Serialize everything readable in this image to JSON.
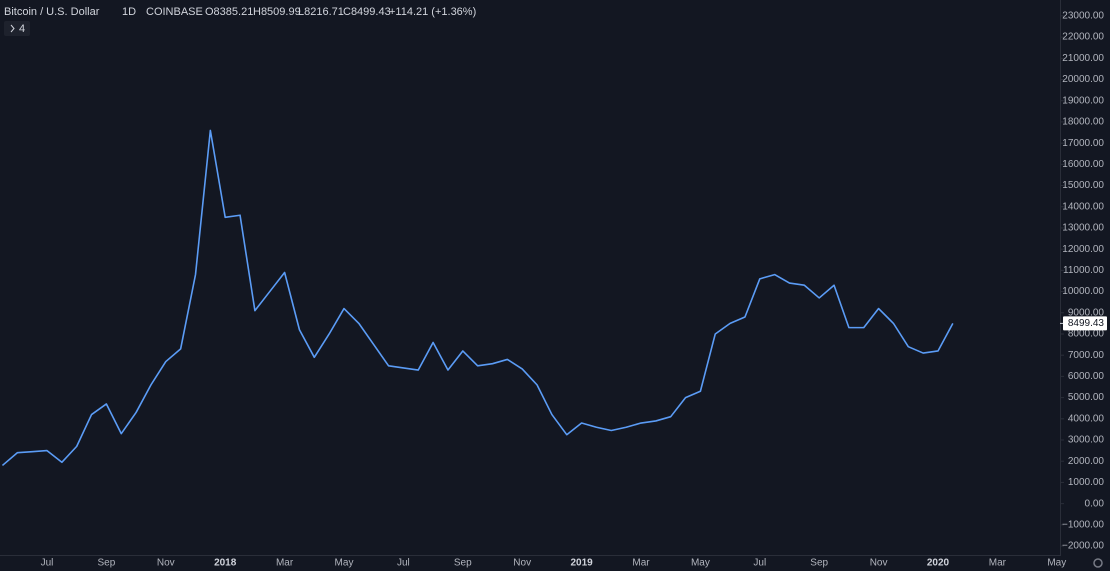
{
  "header": {
    "symbol": "Bitcoin / U.S. Dollar",
    "interval": "1D",
    "exchange": "COINBASE",
    "open": "O8385.21",
    "high": "H8509.99",
    "low": "L8216.71",
    "close": "C8499.43",
    "change": "+114.21 (+1.36%)",
    "indicators": "4"
  },
  "chart_data": {
    "type": "line",
    "categories": [
      null,
      null,
      null,
      "Jul",
      null,
      null,
      null,
      "Sep",
      null,
      null,
      null,
      "Nov",
      null,
      null,
      null,
      "2018",
      null,
      null,
      null,
      "Mar",
      null,
      null,
      null,
      "May",
      null,
      null,
      null,
      "Jul",
      null,
      null,
      null,
      "Sep",
      null,
      null,
      null,
      "Nov",
      null,
      null,
      null,
      "2019",
      null,
      null,
      null,
      "Mar",
      null,
      null,
      null,
      "May",
      null,
      null,
      null,
      "Jul",
      null,
      null,
      null,
      "Sep",
      null,
      null,
      null,
      "Nov",
      null,
      null,
      null,
      "2020",
      null,
      null,
      null,
      "Mar",
      null,
      null,
      null,
      "May"
    ],
    "series": [
      {
        "color": "#5b9cf6",
        "values": [
          1800,
          2400,
          2450,
          2500,
          1950,
          2700,
          4200,
          4700,
          3300,
          4300,
          5600,
          6700,
          7300,
          10800,
          17600,
          13500,
          13600,
          9100,
          10000,
          10900,
          8200,
          6900,
          8000,
          9200,
          8500,
          7500,
          6500,
          6400,
          6300,
          7600,
          6300,
          7200,
          6500,
          6600,
          6800,
          6350,
          5600,
          4200,
          3250,
          3800,
          3600,
          3450,
          3600,
          3800,
          3900,
          4100,
          5000,
          5300,
          8000,
          8500,
          8800,
          10600,
          10800,
          10400,
          10300,
          9700,
          10300,
          8300,
          8300,
          9200,
          8500,
          7400,
          7100,
          7200,
          8500,
          null,
          null,
          null,
          null,
          null,
          null,
          null
        ]
      }
    ],
    "last_price": 8499.43,
    "ylim": [
      -2470,
      23750
    ],
    "yticks": [
      {
        "value": -2000,
        "label": "−2000.00"
      },
      {
        "value": -1000,
        "label": "−1000.00"
      },
      {
        "value": 0,
        "label": "0.00"
      },
      {
        "value": 1000,
        "label": "1000.00"
      },
      {
        "value": 2000,
        "label": "2000.00"
      },
      {
        "value": 3000,
        "label": "3000.00"
      },
      {
        "value": 4000,
        "label": "4000.00"
      },
      {
        "value": 5000,
        "label": "5000.00"
      },
      {
        "value": 6000,
        "label": "6000.00"
      },
      {
        "value": 7000,
        "label": "7000.00"
      },
      {
        "value": 8000,
        "label": "8000.00"
      },
      {
        "value": 9000,
        "label": "9000.00"
      },
      {
        "value": 10000,
        "label": "10000.00"
      },
      {
        "value": 11000,
        "label": "11000.00"
      },
      {
        "value": 12000,
        "label": "12000.00"
      },
      {
        "value": 13000,
        "label": "13000.00"
      },
      {
        "value": 14000,
        "label": "14000.00"
      },
      {
        "value": 15000,
        "label": "15000.00"
      },
      {
        "value": 16000,
        "label": "16000.00"
      },
      {
        "value": 17000,
        "label": "17000.00"
      },
      {
        "value": 18000,
        "label": "18000.00"
      },
      {
        "value": 19000,
        "label": "19000.00"
      },
      {
        "value": 20000,
        "label": "20000.00"
      },
      {
        "value": 21000,
        "label": "21000.00"
      },
      {
        "value": 22000,
        "label": "22000.00"
      },
      {
        "value": 23000,
        "label": "23000.00"
      }
    ],
    "grid": false
  }
}
